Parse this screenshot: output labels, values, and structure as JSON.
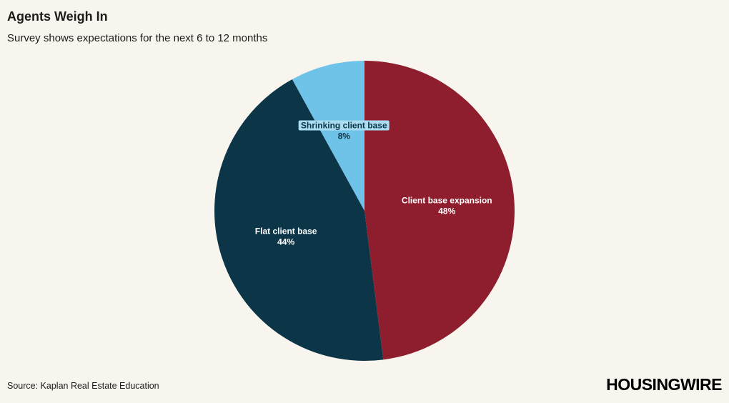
{
  "header": {
    "title": "Agents Weigh In",
    "subtitle": "Survey shows expectations for the next 6 to 12 months"
  },
  "footer": {
    "source": "Source: Kaplan Real Estate Education",
    "brand": "HOUSINGWIRE"
  },
  "colors": {
    "background": "#f8f5ef",
    "text": "#1c1c1a"
  },
  "chart_data": {
    "type": "pie",
    "title": "Agents Weigh In",
    "subtitle": "Survey shows expectations for the next 6 to 12 months",
    "source": "Source: Kaplan Real Estate Education",
    "start_angle_deg": 0,
    "direction": "clockwise",
    "legend_position": "none",
    "data_labels": "inside",
    "slices": [
      {
        "label": "Client base expansion",
        "value": 48,
        "percent_label": "48%",
        "color": "#8e1d2d",
        "text_color": "#ffffff"
      },
      {
        "label": "Flat client base",
        "value": 44,
        "percent_label": "44%",
        "color": "#0c3648",
        "text_color": "#ffffff"
      },
      {
        "label": "Shrinking client base",
        "value": 8,
        "percent_label": "8%",
        "color": "#6fc2e8",
        "text_color": "#0c3648",
        "label_bg": "#aadcf2"
      }
    ]
  }
}
